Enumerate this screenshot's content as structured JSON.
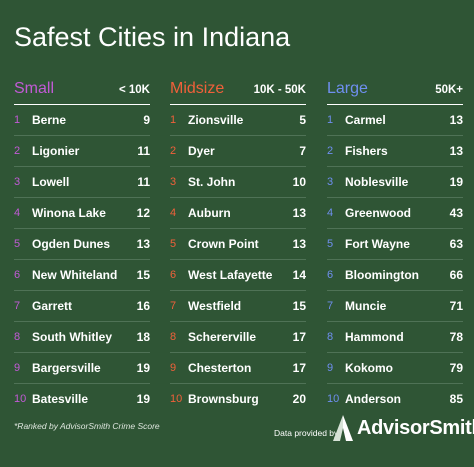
{
  "title": "Safest Cities in Indiana",
  "columns": {
    "small": {
      "name": "Small",
      "range": "< 10K",
      "rows": [
        {
          "rank": "1",
          "city": "Berne",
          "score": "9"
        },
        {
          "rank": "2",
          "city": "Ligonier",
          "score": "11"
        },
        {
          "rank": "3",
          "city": "Lowell",
          "score": "11"
        },
        {
          "rank": "4",
          "city": "Winona Lake",
          "score": "12"
        },
        {
          "rank": "5",
          "city": "Ogden Dunes",
          "score": "13"
        },
        {
          "rank": "6",
          "city": "New Whiteland",
          "score": "15"
        },
        {
          "rank": "7",
          "city": "Garrett",
          "score": "16"
        },
        {
          "rank": "8",
          "city": "South Whitley",
          "score": "18"
        },
        {
          "rank": "9",
          "city": "Bargersville",
          "score": "19"
        },
        {
          "rank": "10",
          "city": "Batesville",
          "score": "19"
        }
      ]
    },
    "mid": {
      "name": "Midsize",
      "range": "10K - 50K",
      "rows": [
        {
          "rank": "1",
          "city": "Zionsville",
          "score": "5"
        },
        {
          "rank": "2",
          "city": "Dyer",
          "score": "7"
        },
        {
          "rank": "3",
          "city": "St. John",
          "score": "10"
        },
        {
          "rank": "4",
          "city": "Auburn",
          "score": "13"
        },
        {
          "rank": "5",
          "city": "Crown Point",
          "score": "13"
        },
        {
          "rank": "6",
          "city": "West Lafayette",
          "score": "14"
        },
        {
          "rank": "7",
          "city": "Westfield",
          "score": "15"
        },
        {
          "rank": "8",
          "city": "Schererville",
          "score": "17"
        },
        {
          "rank": "9",
          "city": "Chesterton",
          "score": "17"
        },
        {
          "rank": "10",
          "city": "Brownsburg",
          "score": "20"
        }
      ]
    },
    "large": {
      "name": "Large",
      "range": "50K+",
      "rows": [
        {
          "rank": "1",
          "city": "Carmel",
          "score": "13"
        },
        {
          "rank": "2",
          "city": "Fishers",
          "score": "13"
        },
        {
          "rank": "3",
          "city": "Noblesville",
          "score": "19"
        },
        {
          "rank": "4",
          "city": "Greenwood",
          "score": "43"
        },
        {
          "rank": "5",
          "city": "Fort Wayne",
          "score": "63"
        },
        {
          "rank": "6",
          "city": "Bloomington",
          "score": "66"
        },
        {
          "rank": "7",
          "city": "Muncie",
          "score": "71"
        },
        {
          "rank": "8",
          "city": "Hammond",
          "score": "78"
        },
        {
          "rank": "9",
          "city": "Kokomo",
          "score": "79"
        },
        {
          "rank": "10",
          "city": "Anderson",
          "score": "85"
        }
      ]
    }
  },
  "footnote": "*Ranked by AdvisorSmith Crime Score",
  "provided_by": "Data provided by",
  "logo_text": "AdvisorSmith",
  "logo_icon": "advisorsmith-logo-icon",
  "colors": {
    "background": "#2f5535",
    "small": "#c25ad6",
    "midsize": "#f0603a",
    "large": "#6f8ff0"
  }
}
